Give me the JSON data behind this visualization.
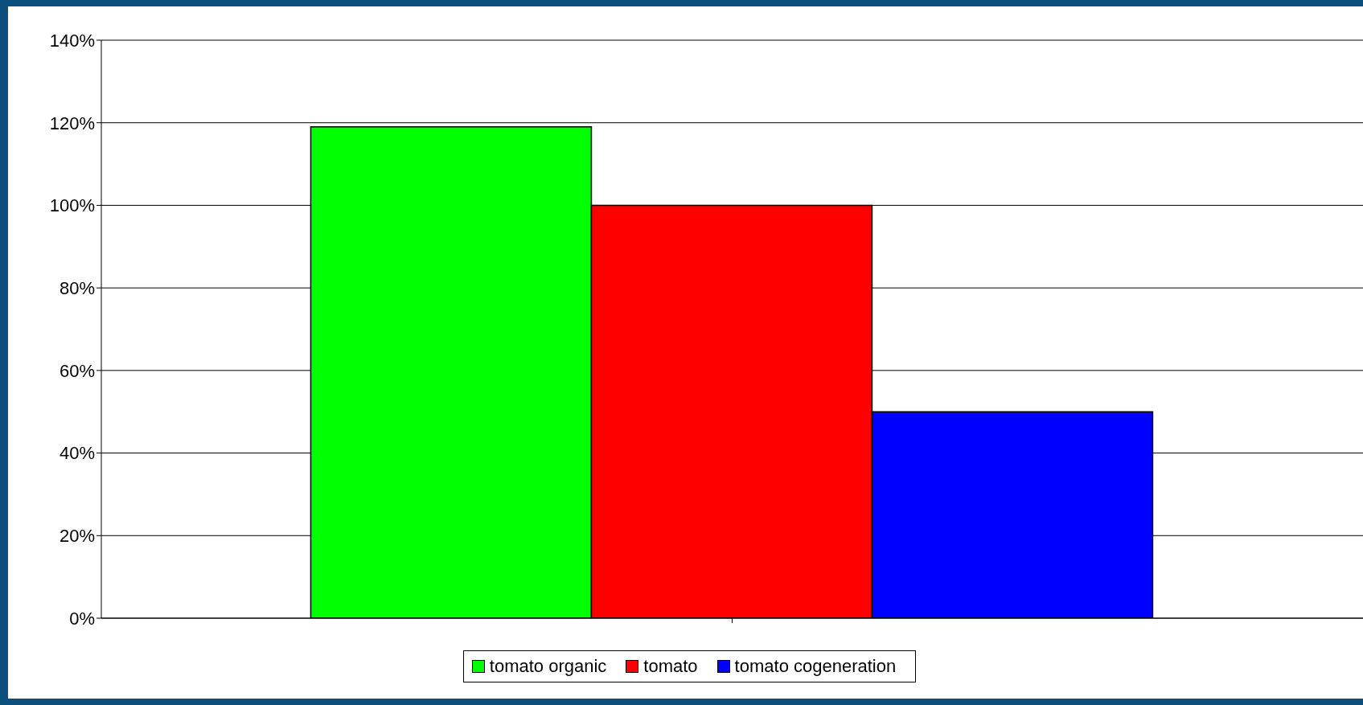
{
  "chart_data": {
    "type": "bar",
    "categories": [
      null
    ],
    "series": [
      {
        "name": "tomato organic",
        "color": "#00ff00",
        "values": [
          119
        ]
      },
      {
        "name": "tomato",
        "color": "#ff0000",
        "values": [
          100
        ]
      },
      {
        "name": "tomato cogeneration",
        "color": "#0000ff",
        "values": [
          50
        ]
      }
    ],
    "ylim": [
      0,
      140
    ],
    "yticks": [
      {
        "value": 0,
        "label": "0%"
      },
      {
        "value": 20,
        "label": "20%"
      },
      {
        "value": 40,
        "label": "40%"
      },
      {
        "value": 60,
        "label": "60%"
      },
      {
        "value": 80,
        "label": "80%"
      },
      {
        "value": 100,
        "label": "100%"
      },
      {
        "value": 120,
        "label": "120%"
      },
      {
        "value": 140,
        "label": "140%"
      }
    ],
    "grid": "y",
    "legend": "bottom"
  }
}
